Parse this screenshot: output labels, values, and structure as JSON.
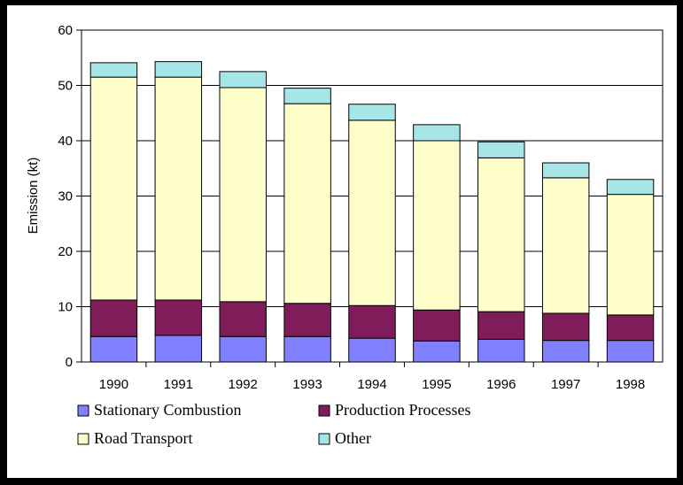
{
  "chart_data": {
    "type": "bar",
    "stacked": true,
    "categories": [
      "1990",
      "1991",
      "1992",
      "1993",
      "1994",
      "1995",
      "1996",
      "1997",
      "1998"
    ],
    "series": [
      {
        "name": "Stationary Combustion",
        "color": "#8080ff",
        "values": [
          4.6,
          4.8,
          4.6,
          4.6,
          4.3,
          3.8,
          4.1,
          3.9,
          3.9
        ]
      },
      {
        "name": "Production Processes",
        "color": "#7f1d5a",
        "values": [
          6.6,
          6.4,
          6.3,
          6.0,
          5.9,
          5.6,
          5.0,
          4.9,
          4.6
        ]
      },
      {
        "name": "Road Transport",
        "color": "#ffffcc",
        "values": [
          40.3,
          40.3,
          38.7,
          36.1,
          33.5,
          30.6,
          27.8,
          24.5,
          21.8
        ]
      },
      {
        "name": "Other",
        "color": "#a6e6e6",
        "values": [
          2.6,
          2.8,
          2.9,
          2.8,
          2.9,
          2.9,
          2.9,
          2.7,
          2.7
        ]
      }
    ],
    "xlabel": "",
    "ylabel": "Emission (kt)",
    "ylim": [
      0,
      60
    ],
    "yticks": [
      "0",
      "10",
      "20",
      "30",
      "40",
      "50",
      "60"
    ],
    "grid": true,
    "legend_position": "bottom"
  }
}
